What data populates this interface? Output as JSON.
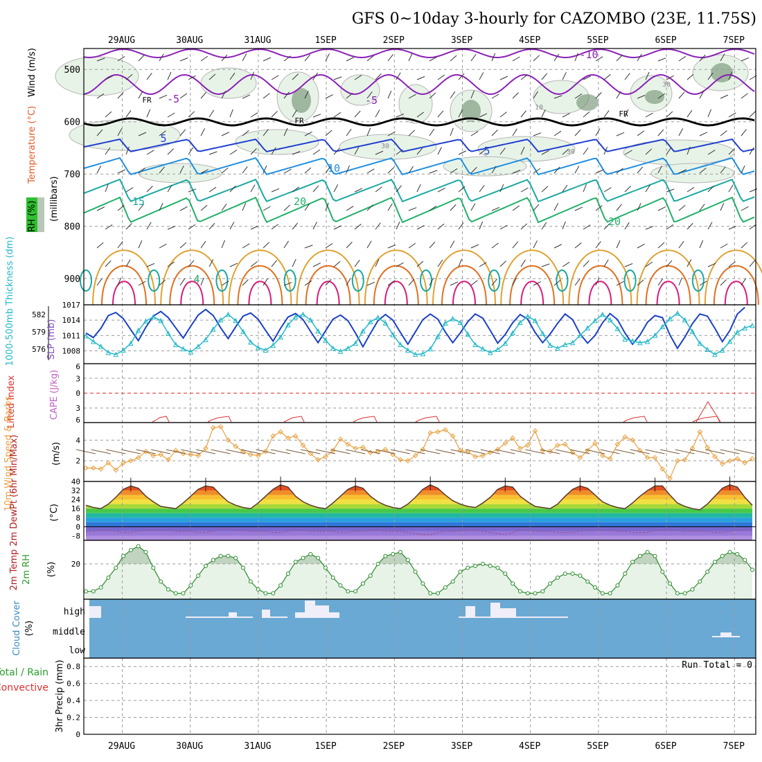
{
  "chart_data": {
    "type": "meteogram",
    "title": "GFS 0~10day 3-hourly for CAZOMBO (23E, 11.75S)",
    "dates": [
      "29AUG",
      "30AUG",
      "31AUG",
      "1SEP",
      "2SEP",
      "3SEP",
      "4SEP",
      "5SEP",
      "6SEP",
      "7SEP"
    ],
    "run_total": "Run Total = 0",
    "colors": {
      "frame": "#000000",
      "grid": "#9a9a9a",
      "purple": "#8a1fb6",
      "blue": "#1f3fd0",
      "lightblue": "#1f8fe0",
      "teal": "#1aa8a0",
      "green": "#22b06a",
      "orange": "#e0a030",
      "darkorange": "#e07020",
      "magenta": "#d81a78",
      "rh_fill": "#e8f3e8",
      "rh_dark": "#6e8e6e",
      "cloud_bg": "#6aa9d4",
      "cloud_bar": "#f0eef8",
      "slp": "#1a3fc8",
      "thick": "#22b8c8",
      "wind10": "#e8a040",
      "dew": "#9a5aa0",
      "lifted": "#e03030"
    },
    "panels": {
      "upper": {
        "ylabel_parts": [
          "RH (%)",
          "Temperature (°C)",
          "Wind (m/s)"
        ],
        "yunit": "(millibars)",
        "yticks": [
          500,
          600,
          700,
          800,
          900
        ],
        "ylim": [
          460,
          950
        ],
        "freezing_label": "FR",
        "isotherm_labels": [
          "-10",
          "-5",
          "-5",
          "5",
          "5",
          "10",
          "15",
          "20",
          "20",
          "4"
        ],
        "rh_labels": [
          "30",
          "30",
          "30",
          "10"
        ]
      },
      "slp": {
        "ylabel_left": "1000-500mb Thickness (dm)",
        "ylabel_right": "SLP (mb)",
        "left_ticks": [
          582,
          579,
          576
        ],
        "right_ticks": [
          1017,
          1014,
          1011,
          1008
        ],
        "ylim_right": [
          1005.5,
          1017
        ],
        "slp_values": [
          1011.5,
          1010.6,
          1012.4,
          1014.9,
          1015.5,
          1014.3,
          1012.1,
          1010.0,
          1012.6,
          1014.8,
          1015.7,
          1014.5,
          1012.5,
          1010.5,
          1012.8,
          1015.0,
          1016.1,
          1014.9,
          1012.5,
          1010.4,
          1012.7,
          1014.8,
          1015.4,
          1014.2,
          1012.0,
          1009.9,
          1012.4,
          1014.6,
          1015.3,
          1014.1,
          1011.8,
          1009.6,
          1011.9,
          1014.2,
          1015.0,
          1013.9,
          1011.5,
          1008.8,
          1011.4,
          1013.9,
          1015.1,
          1014.0,
          1011.6,
          1009.3,
          1011.7,
          1014.1,
          1015.2,
          1014.2,
          1011.7,
          1009.6,
          1011.5,
          1013.7,
          1015.2,
          1014.4,
          1012.0,
          1009.5,
          1011.2,
          1013.5,
          1015.1,
          1014.2,
          1011.6,
          1009.6,
          1011.3,
          1013.4,
          1015.2,
          1014.1,
          1011.3,
          1009.5,
          1011.0,
          1013.5,
          1015.3,
          1014.1,
          1011.5,
          1009.3,
          1011.1,
          1013.6,
          1014.9,
          1014.5,
          1011.1,
          1008.5,
          1010.7,
          1013.3,
          1015.2,
          1014.8,
          1012.4,
          1009.8,
          1012.0,
          1015.2,
          1016.5
        ],
        "thickness_values": [
          579.5,
          578.6,
          577.8,
          576.8,
          576.5,
          577.2,
          578.3,
          580.4,
          581.9,
          582.6,
          582.0,
          579.9,
          578.1,
          577.4,
          576.9,
          577.8,
          578.9,
          580.6,
          582.1,
          583.0,
          582.0,
          580.2,
          578.5,
          577.6,
          577.2,
          578.0,
          579.3,
          581.3,
          582.6,
          583.0,
          582.1,
          580.3,
          578.8,
          577.5,
          577.0,
          577.5,
          578.3,
          580.3,
          581.8,
          582.5,
          581.6,
          579.7,
          578.1,
          577.2,
          576.5,
          576.6,
          577.4,
          579.4,
          581.6,
          582.3,
          581.7,
          579.8,
          578.1,
          577.4,
          576.8,
          577.3,
          578.3,
          580.0,
          581.7,
          582.7,
          582.0,
          579.9,
          578.0,
          577.5,
          578.1,
          578.4,
          579.6,
          580.8,
          582.0,
          583.0,
          582.1,
          580.7,
          579.0,
          578.7,
          578.4,
          578.6,
          579.6,
          581.0,
          582.3,
          583.2,
          582.1,
          580.2,
          578.3,
          577.3,
          576.5,
          577.2,
          578.6,
          580.1,
          580.8,
          581.2
        ]
      },
      "cape": {
        "ylabel_left": "Lifted Index",
        "ylabel_right": "CAPE (J/kg)",
        "yticks": [
          "6",
          "3",
          "0",
          "3",
          "6"
        ],
        "ylim": [
          -6,
          6
        ]
      },
      "wind10": {
        "ylabel": "10m Wind Speed & Barbs",
        "yunit": "(m/s)",
        "yticks": [
          2,
          4
        ],
        "ylim": [
          0,
          5.7
        ],
        "values": [
          1.3,
          1.3,
          1.2,
          1.8,
          1.1,
          1.8,
          2.0,
          2.3,
          2.9,
          2.5,
          2.6,
          2.1,
          3.0,
          2.7,
          2.6,
          2.5,
          3.2,
          5.2,
          5.3,
          4.0,
          3.4,
          2.9,
          2.6,
          2.5,
          2.9,
          4.4,
          4.8,
          4.2,
          4.4,
          3.5,
          2.7,
          2.1,
          2.4,
          3.0,
          4.1,
          3.6,
          3.2,
          3.3,
          2.8,
          2.9,
          3.1,
          2.6,
          2.1,
          2.0,
          2.5,
          3.1,
          4.7,
          4.8,
          5.0,
          4.4,
          3.0,
          2.9,
          2.4,
          2.5,
          2.8,
          3.1,
          3.7,
          4.2,
          3.2,
          3.5,
          4.9,
          3.0,
          2.9,
          3.5,
          3.6,
          2.8,
          2.3,
          3.0,
          3.7,
          2.5,
          2.2,
          3.6,
          4.3,
          4.0,
          3.0,
          2.3,
          2.3,
          1.2,
          0.3,
          2.0,
          2.1,
          3.2,
          4.8,
          3.3,
          2.4,
          1.7,
          2.0,
          2.2,
          1.8,
          2.2
        ]
      },
      "temp": {
        "ylabel": "2m Temp 2m DewPt (6hr Min/Max)",
        "yunit": "(°C)",
        "yticks": [
          40,
          32,
          24,
          16,
          8,
          0,
          -8
        ],
        "ylim": [
          -12,
          40
        ],
        "temp_values": [
          19,
          17,
          16,
          20,
          26,
          33,
          36,
          34,
          27,
          22,
          18,
          17,
          16,
          21,
          27,
          33,
          36,
          35,
          28,
          22,
          19,
          17,
          16,
          21,
          27,
          33,
          37,
          35,
          27,
          22,
          19,
          17,
          16,
          21,
          27,
          33,
          36,
          34,
          27,
          22,
          19,
          17,
          16,
          20,
          26,
          33,
          37,
          34,
          28,
          23,
          20,
          18,
          17,
          21,
          26,
          33,
          36,
          35,
          27,
          22,
          18,
          17,
          16,
          20,
          27,
          33,
          36,
          34,
          28,
          22,
          19,
          17,
          16,
          21,
          27,
          32,
          36,
          36,
          28,
          21,
          18,
          16,
          15,
          20,
          27,
          34,
          37,
          35,
          26,
          19
        ],
        "dew_values": [
          -4,
          -4,
          -3,
          -3,
          -4,
          -5,
          -5,
          -4,
          -3,
          -3,
          -3,
          -3,
          -4,
          -4,
          -4,
          -5,
          -5,
          -4,
          -2,
          -2,
          -3,
          -3,
          -4,
          -4,
          -4,
          -5,
          -5,
          -4,
          -3,
          -3,
          -4,
          -4,
          -4,
          -4,
          -5,
          -5,
          -4,
          -4,
          -3,
          -3,
          -4,
          -4,
          -4,
          -5,
          -6,
          -7,
          -7,
          -5,
          -4,
          -4,
          -4,
          -3,
          -3,
          -4,
          -5,
          -6,
          -7,
          -5,
          -3,
          -3,
          -4,
          -4,
          -4,
          -5,
          -5,
          -5,
          -4,
          -3,
          -3,
          -3,
          -3,
          -4,
          -4,
          -5,
          -5,
          -5,
          -3,
          -3,
          -3,
          -3,
          -4,
          -4,
          -4,
          -4,
          -5,
          -5,
          -4,
          -3,
          -3,
          -2
        ]
      },
      "rh2m": {
        "ylabel": "2m RH",
        "yunit": "(%)",
        "yticks": [
          20
        ],
        "ylim": [
          2,
          32
        ],
        "values": [
          6,
          6,
          8,
          13,
          18,
          24,
          27,
          29,
          26,
          18,
          11,
          7,
          5,
          5,
          9,
          14,
          19,
          22,
          24,
          24,
          23,
          18,
          11,
          7,
          5,
          5,
          9,
          15,
          21,
          23,
          25,
          23,
          18,
          13,
          9,
          6,
          6,
          10,
          14,
          20,
          24,
          25,
          26,
          22,
          16,
          10,
          5,
          5,
          8,
          11,
          16,
          18,
          19,
          20,
          19,
          18,
          15,
          10,
          6,
          5,
          5,
          6,
          10,
          13,
          15,
          15,
          14,
          11,
          8,
          5,
          5,
          9,
          15,
          21,
          24,
          26,
          24,
          16,
          10,
          5,
          5,
          7,
          11,
          16,
          21,
          24,
          26,
          25,
          22,
          17
        ]
      },
      "cloud": {
        "ylabel": "Cloud Cover",
        "yunit": "(%)",
        "level_labels": [
          "high",
          "middle",
          "low"
        ]
      },
      "precip": {
        "ylabel": "3hr Precip (mm)",
        "legend": [
          "Total / Rain",
          "Convective"
        ],
        "yticks": [
          0,
          0.2,
          0.4,
          0.6,
          0.8
        ],
        "ylim": [
          0,
          0.9
        ],
        "total_values": []
      }
    }
  }
}
